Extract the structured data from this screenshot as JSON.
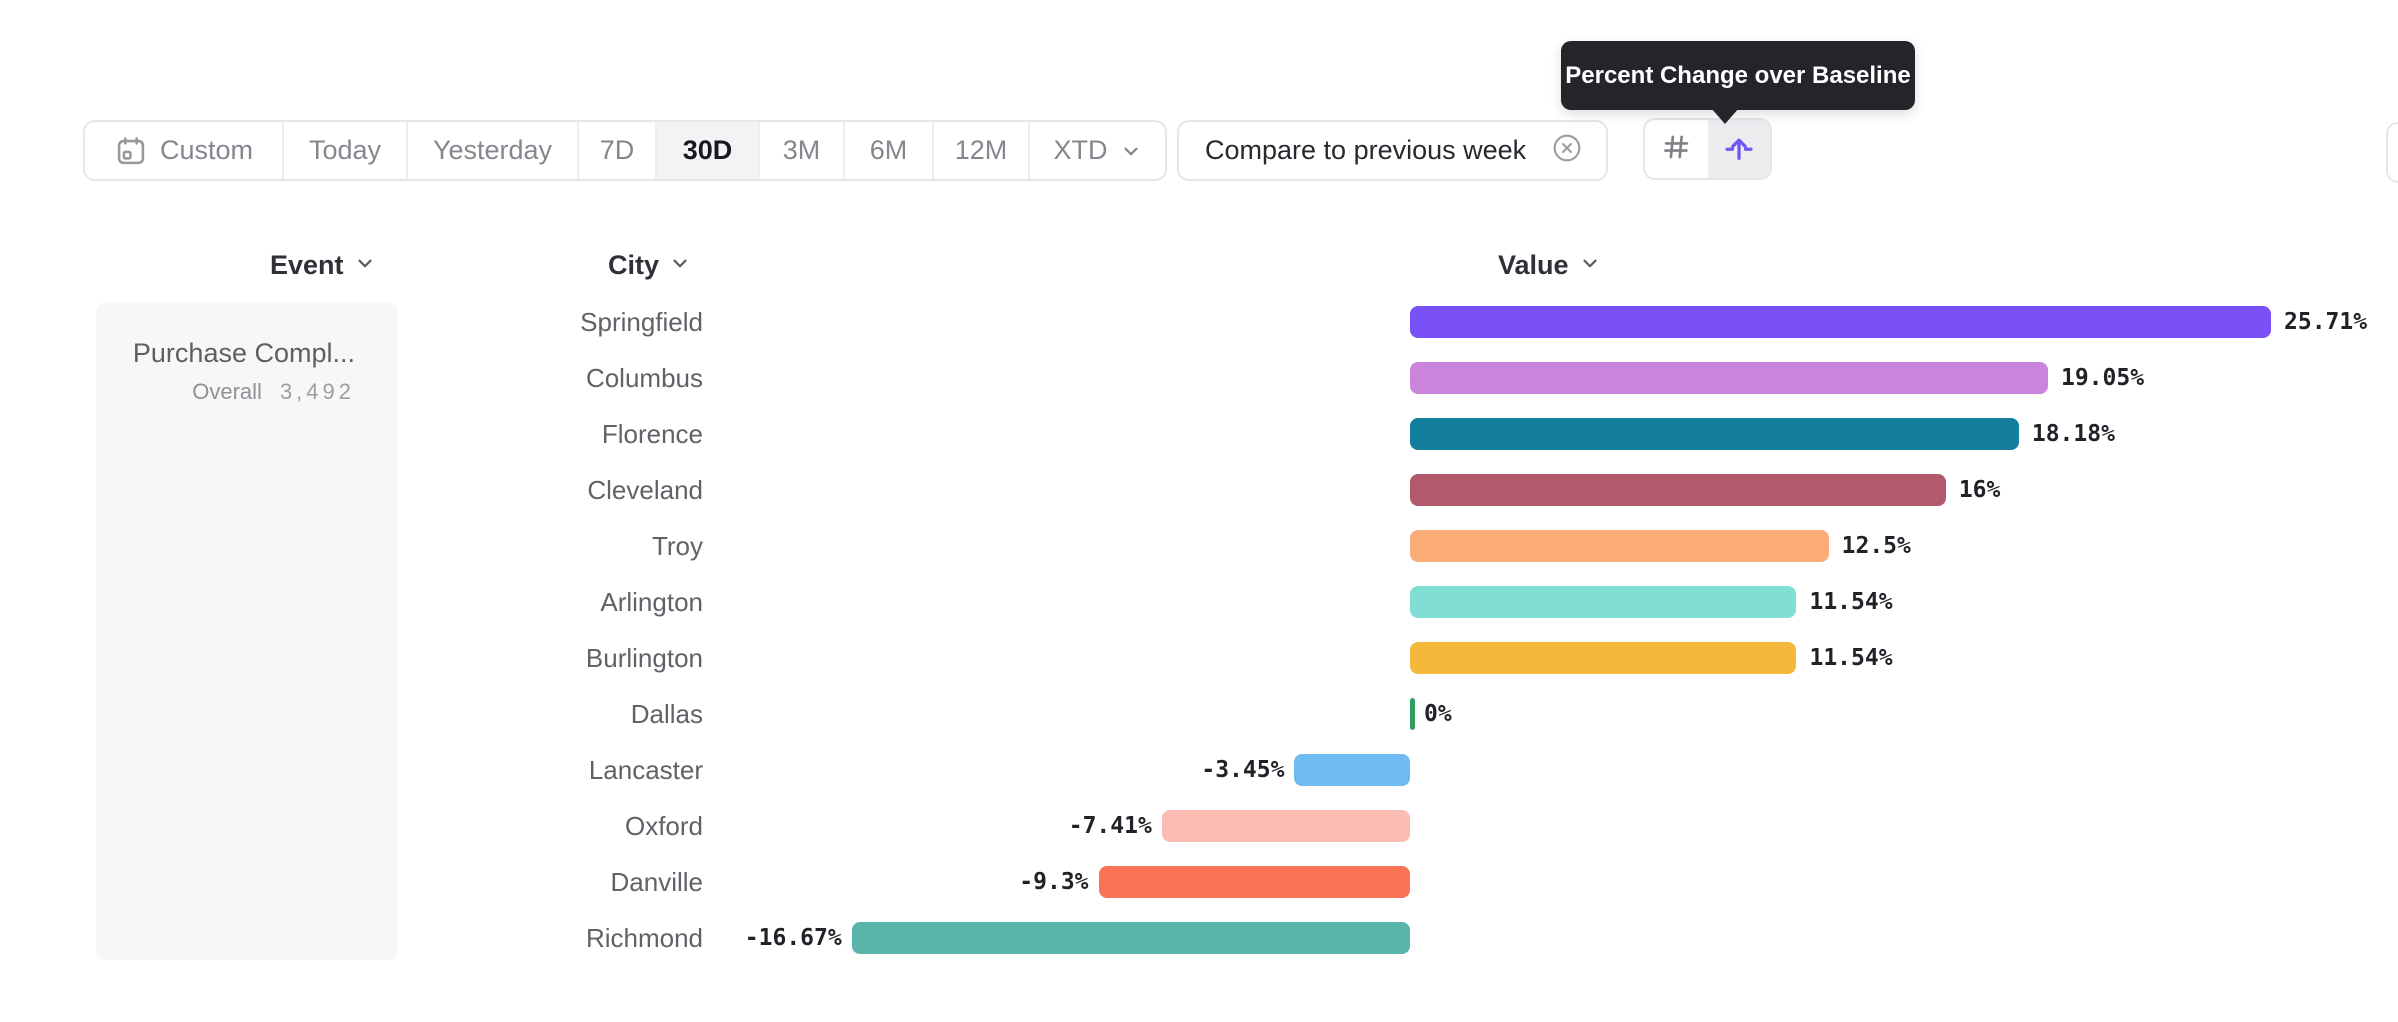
{
  "toolbar": {
    "date_ranges": [
      {
        "label": "Custom",
        "icon": "calendar-icon"
      },
      {
        "label": "Today"
      },
      {
        "label": "Yesterday"
      },
      {
        "label": "7D"
      },
      {
        "label": "30D",
        "selected": true
      },
      {
        "label": "3M"
      },
      {
        "label": "6M"
      },
      {
        "label": "12M"
      },
      {
        "label": "XTD",
        "has_chevron": true
      }
    ],
    "compare_chip": {
      "label": "Compare to previous week",
      "close_icon": "close-circle-icon"
    },
    "view_toggle": {
      "options": [
        {
          "name": "number-view",
          "icon": "hash-icon",
          "selected": false
        },
        {
          "name": "percent-change-view",
          "icon": "baseline-arrow-icon",
          "selected": true
        }
      ],
      "accent_color": "#7254f2"
    }
  },
  "tooltip": {
    "text": "Percent Change over Baseline",
    "background": "#26242b"
  },
  "columns": {
    "event": {
      "label": "Event",
      "icon": "chevron-down-icon"
    },
    "city": {
      "label": "City",
      "icon": "chevron-down-icon"
    },
    "value": {
      "label": "Value",
      "icon": "chevron-down-icon"
    }
  },
  "event_card": {
    "title": "Purchase Compl...",
    "subtitle_label": "Overall",
    "subtitle_value": "3,492"
  },
  "chart_data": {
    "type": "bar",
    "orientation": "horizontal",
    "title": "Percent Change over Baseline",
    "value_format": "percent",
    "xlim": [
      -16.67,
      25.71
    ],
    "grid": false,
    "categories": [
      "Springfield",
      "Columbus",
      "Florence",
      "Cleveland",
      "Troy",
      "Arlington",
      "Burlington",
      "Dallas",
      "Lancaster",
      "Oxford",
      "Danville",
      "Richmond"
    ],
    "values": [
      25.71,
      19.05,
      18.18,
      16,
      12.5,
      11.54,
      11.54,
      0,
      -3.45,
      -7.41,
      -9.3,
      -16.67
    ],
    "value_labels": [
      "25.71%",
      "19.05%",
      "18.18%",
      "16%",
      "12.5%",
      "11.54%",
      "11.54%",
      "0%",
      "-3.45%",
      "-7.41%",
      "-9.3%",
      "-16.67%"
    ],
    "colors": [
      "#7a51f7",
      "#cb84dc",
      "#137f9d",
      "#b15a6e",
      "#fcac78",
      "#80ded5",
      "#f3b83c",
      "#2f9e5f",
      "#6fbbf2",
      "#fbbdb3",
      "#fb7356",
      "#59b4a9"
    ],
    "zero_tick_color": "#2f9e5f"
  }
}
